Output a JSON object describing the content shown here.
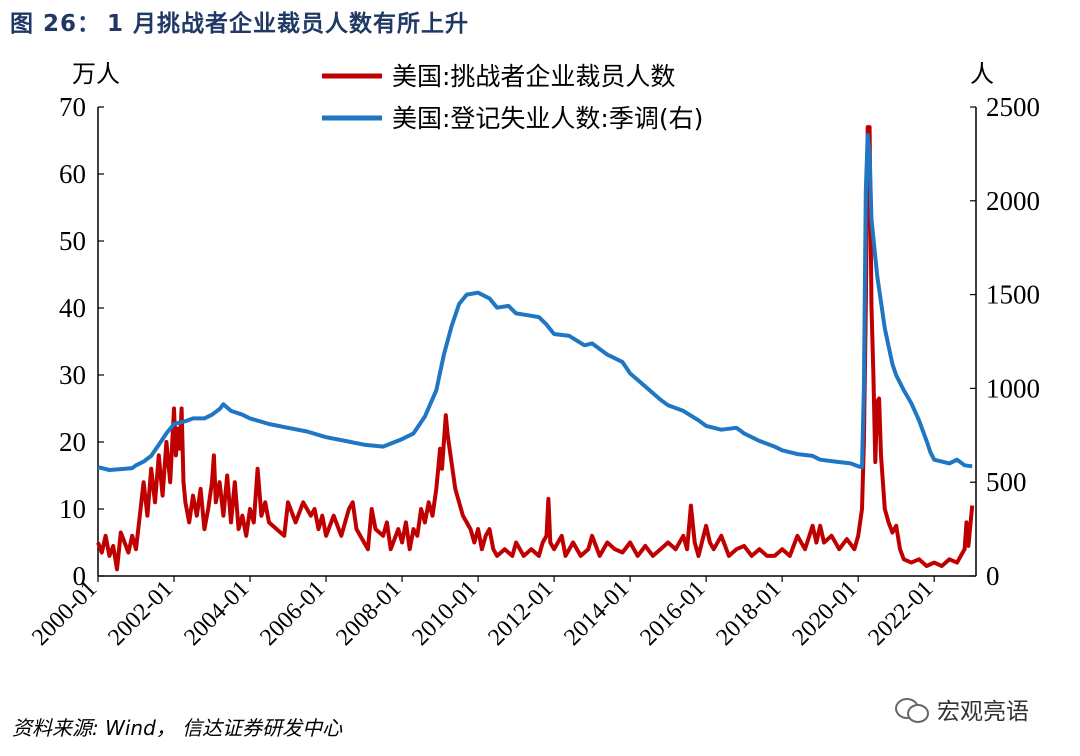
{
  "figure": {
    "label": "图 26：",
    "title": "1 月挑战者企业裁员人数有所上升",
    "source": "资料来源: Wind， 信达证券研发中心",
    "watermark": "宏观亮语",
    "watermark_icon": "wechat-icon"
  },
  "chart_data": {
    "type": "line",
    "x_tick_labels": [
      "2000-01",
      "2002-01",
      "2004-01",
      "2006-01",
      "2008-01",
      "2010-01",
      "2012-01",
      "2014-01",
      "2016-01",
      "2018-01",
      "2020-01",
      "2022-01"
    ],
    "x_ticks": [
      2000,
      2002,
      2004,
      2006,
      2008,
      2010,
      2012,
      2014,
      2016,
      2018,
      2020,
      2022
    ],
    "xlim": [
      2000.0,
      2023.1
    ],
    "left_axis": {
      "unit": "万人",
      "ylim": [
        0,
        70
      ],
      "ticks": [
        0,
        10,
        20,
        30,
        40,
        50,
        60,
        70
      ]
    },
    "right_axis": {
      "unit": "人",
      "ylim": [
        0,
        2500
      ],
      "ticks": [
        0,
        500,
        1000,
        1500,
        2000,
        2500
      ]
    },
    "grid": false,
    "legend_position": "top-center",
    "series": [
      {
        "name": "美国:挑战者企业裁员人数",
        "axis": "left",
        "color": "#c00000",
        "points": [
          [
            2000.0,
            5.0
          ],
          [
            2000.1,
            3.5
          ],
          [
            2000.2,
            6.0
          ],
          [
            2000.3,
            3.0
          ],
          [
            2000.4,
            4.5
          ],
          [
            2000.5,
            1.0
          ],
          [
            2000.6,
            6.5
          ],
          [
            2000.7,
            5.0
          ],
          [
            2000.8,
            3.5
          ],
          [
            2000.9,
            6.0
          ],
          [
            2001.0,
            4.0
          ],
          [
            2001.1,
            9.0
          ],
          [
            2001.2,
            14.0
          ],
          [
            2001.3,
            9.0
          ],
          [
            2001.4,
            16.0
          ],
          [
            2001.5,
            11.0
          ],
          [
            2001.6,
            18.0
          ],
          [
            2001.7,
            12.0
          ],
          [
            2001.8,
            20.0
          ],
          [
            2001.9,
            14.0
          ],
          [
            2002.0,
            25.0
          ],
          [
            2002.05,
            18.0
          ],
          [
            2002.1,
            22.0
          ],
          [
            2002.15,
            19.0
          ],
          [
            2002.2,
            25.0
          ],
          [
            2002.25,
            14.0
          ],
          [
            2002.3,
            11.0
          ],
          [
            2002.4,
            8.0
          ],
          [
            2002.5,
            12.0
          ],
          [
            2002.6,
            9.0
          ],
          [
            2002.7,
            13.0
          ],
          [
            2002.8,
            7.0
          ],
          [
            2002.9,
            10.0
          ],
          [
            2003.0,
            14.0
          ],
          [
            2003.05,
            18.0
          ],
          [
            2003.1,
            11.0
          ],
          [
            2003.2,
            14.0
          ],
          [
            2003.3,
            9.0
          ],
          [
            2003.4,
            15.0
          ],
          [
            2003.5,
            8.0
          ],
          [
            2003.6,
            14.0
          ],
          [
            2003.7,
            7.0
          ],
          [
            2003.8,
            9.0
          ],
          [
            2003.9,
            6.0
          ],
          [
            2004.0,
            10.0
          ],
          [
            2004.1,
            8.0
          ],
          [
            2004.2,
            16.0
          ],
          [
            2004.3,
            9.0
          ],
          [
            2004.4,
            11.0
          ],
          [
            2004.5,
            8.0
          ],
          [
            2004.7,
            7.0
          ],
          [
            2004.9,
            6.0
          ],
          [
            2005.0,
            11.0
          ],
          [
            2005.2,
            8.0
          ],
          [
            2005.4,
            11.0
          ],
          [
            2005.6,
            9.0
          ],
          [
            2005.7,
            10.0
          ],
          [
            2005.8,
            7.0
          ],
          [
            2005.9,
            9.0
          ],
          [
            2006.0,
            6.0
          ],
          [
            2006.2,
            9.0
          ],
          [
            2006.4,
            6.0
          ],
          [
            2006.6,
            10.0
          ],
          [
            2006.7,
            11.0
          ],
          [
            2006.8,
            7.0
          ],
          [
            2007.0,
            5.0
          ],
          [
            2007.1,
            4.0
          ],
          [
            2007.2,
            10.0
          ],
          [
            2007.3,
            7.0
          ],
          [
            2007.5,
            6.0
          ],
          [
            2007.6,
            8.0
          ],
          [
            2007.7,
            4.0
          ],
          [
            2007.9,
            7.0
          ],
          [
            2008.0,
            5.0
          ],
          [
            2008.1,
            8.0
          ],
          [
            2008.2,
            4.0
          ],
          [
            2008.3,
            7.0
          ],
          [
            2008.4,
            6.0
          ],
          [
            2008.5,
            10.0
          ],
          [
            2008.6,
            8.0
          ],
          [
            2008.7,
            11.0
          ],
          [
            2008.8,
            9.0
          ],
          [
            2008.9,
            13.0
          ],
          [
            2009.0,
            19.0
          ],
          [
            2009.05,
            16.0
          ],
          [
            2009.1,
            20.0
          ],
          [
            2009.15,
            24.0
          ],
          [
            2009.2,
            21.0
          ],
          [
            2009.3,
            17.0
          ],
          [
            2009.4,
            13.0
          ],
          [
            2009.5,
            11.0
          ],
          [
            2009.6,
            9.0
          ],
          [
            2009.7,
            8.0
          ],
          [
            2009.8,
            7.0
          ],
          [
            2009.9,
            5.0
          ],
          [
            2010.0,
            7.0
          ],
          [
            2010.1,
            4.0
          ],
          [
            2010.2,
            6.0
          ],
          [
            2010.3,
            7.0
          ],
          [
            2010.4,
            4.0
          ],
          [
            2010.5,
            3.0
          ],
          [
            2010.7,
            4.0
          ],
          [
            2010.9,
            3.0
          ],
          [
            2011.0,
            5.0
          ],
          [
            2011.2,
            3.0
          ],
          [
            2011.4,
            4.0
          ],
          [
            2011.6,
            3.0
          ],
          [
            2011.7,
            5.0
          ],
          [
            2011.8,
            6.0
          ],
          [
            2011.85,
            11.5
          ],
          [
            2011.9,
            5.0
          ],
          [
            2012.0,
            4.0
          ],
          [
            2012.2,
            6.0
          ],
          [
            2012.3,
            3.0
          ],
          [
            2012.5,
            5.0
          ],
          [
            2012.7,
            3.0
          ],
          [
            2012.9,
            4.0
          ],
          [
            2013.0,
            6.0
          ],
          [
            2013.2,
            3.0
          ],
          [
            2013.4,
            5.0
          ],
          [
            2013.6,
            4.0
          ],
          [
            2013.8,
            3.5
          ],
          [
            2014.0,
            5.0
          ],
          [
            2014.2,
            3.0
          ],
          [
            2014.4,
            4.5
          ],
          [
            2014.6,
            3.0
          ],
          [
            2014.8,
            4.0
          ],
          [
            2015.0,
            5.0
          ],
          [
            2015.2,
            4.0
          ],
          [
            2015.4,
            6.0
          ],
          [
            2015.5,
            4.0
          ],
          [
            2015.6,
            10.5
          ],
          [
            2015.7,
            5.0
          ],
          [
            2015.8,
            3.0
          ],
          [
            2016.0,
            7.5
          ],
          [
            2016.1,
            5.0
          ],
          [
            2016.2,
            4.0
          ],
          [
            2016.4,
            6.0
          ],
          [
            2016.6,
            3.0
          ],
          [
            2016.8,
            4.0
          ],
          [
            2017.0,
            4.5
          ],
          [
            2017.2,
            3.0
          ],
          [
            2017.4,
            4.0
          ],
          [
            2017.6,
            3.0
          ],
          [
            2017.8,
            3.0
          ],
          [
            2018.0,
            4.0
          ],
          [
            2018.2,
            3.0
          ],
          [
            2018.4,
            6.0
          ],
          [
            2018.6,
            4.0
          ],
          [
            2018.8,
            7.5
          ],
          [
            2018.9,
            5.0
          ],
          [
            2019.0,
            7.5
          ],
          [
            2019.1,
            5.0
          ],
          [
            2019.3,
            6.0
          ],
          [
            2019.5,
            4.0
          ],
          [
            2019.7,
            5.5
          ],
          [
            2019.9,
            4.0
          ],
          [
            2020.0,
            6.0
          ],
          [
            2020.1,
            10.0
          ],
          [
            2020.15,
            20.0
          ],
          [
            2020.2,
            40.0
          ],
          [
            2020.25,
            67.0
          ],
          [
            2020.3,
            67.0
          ],
          [
            2020.35,
            40.0
          ],
          [
            2020.4,
            30.0
          ],
          [
            2020.45,
            17.0
          ],
          [
            2020.5,
            26.0
          ],
          [
            2020.55,
            26.5
          ],
          [
            2020.6,
            18.0
          ],
          [
            2020.7,
            10.0
          ],
          [
            2020.8,
            8.0
          ],
          [
            2020.9,
            6.5
          ],
          [
            2021.0,
            7.5
          ],
          [
            2021.1,
            4.0
          ],
          [
            2021.2,
            2.5
          ],
          [
            2021.4,
            2.0
          ],
          [
            2021.6,
            2.5
          ],
          [
            2021.8,
            1.5
          ],
          [
            2022.0,
            2.0
          ],
          [
            2022.2,
            1.5
          ],
          [
            2022.4,
            2.5
          ],
          [
            2022.6,
            2.0
          ],
          [
            2022.7,
            3.0
          ],
          [
            2022.8,
            4.0
          ],
          [
            2022.85,
            8.0
          ],
          [
            2022.9,
            4.5
          ],
          [
            2023.0,
            10.5
          ]
        ]
      },
      {
        "name": "美国:登记失业人数:季调(右)",
        "axis": "right",
        "color": "#1f77c4",
        "points": [
          [
            2000.0,
            580
          ],
          [
            2000.3,
            565
          ],
          [
            2000.6,
            570
          ],
          [
            2000.9,
            575
          ],
          [
            2001.0,
            590
          ],
          [
            2001.2,
            610
          ],
          [
            2001.4,
            640
          ],
          [
            2001.6,
            700
          ],
          [
            2001.8,
            760
          ],
          [
            2002.0,
            810
          ],
          [
            2002.3,
            825
          ],
          [
            2002.5,
            840
          ],
          [
            2002.8,
            840
          ],
          [
            2003.0,
            860
          ],
          [
            2003.2,
            890
          ],
          [
            2003.3,
            915
          ],
          [
            2003.5,
            880
          ],
          [
            2003.8,
            860
          ],
          [
            2004.0,
            840
          ],
          [
            2004.5,
            810
          ],
          [
            2005.0,
            790
          ],
          [
            2005.5,
            770
          ],
          [
            2006.0,
            740
          ],
          [
            2006.5,
            720
          ],
          [
            2007.0,
            700
          ],
          [
            2007.5,
            690
          ],
          [
            2008.0,
            730
          ],
          [
            2008.3,
            760
          ],
          [
            2008.6,
            850
          ],
          [
            2008.9,
            990
          ],
          [
            2009.1,
            1180
          ],
          [
            2009.3,
            1330
          ],
          [
            2009.5,
            1450
          ],
          [
            2009.7,
            1500
          ],
          [
            2010.0,
            1510
          ],
          [
            2010.3,
            1480
          ],
          [
            2010.5,
            1430
          ],
          [
            2010.8,
            1440
          ],
          [
            2011.0,
            1400
          ],
          [
            2011.3,
            1390
          ],
          [
            2011.6,
            1380
          ],
          [
            2011.8,
            1340
          ],
          [
            2012.0,
            1290
          ],
          [
            2012.4,
            1280
          ],
          [
            2012.8,
            1230
          ],
          [
            2013.0,
            1240
          ],
          [
            2013.4,
            1180
          ],
          [
            2013.8,
            1140
          ],
          [
            2014.0,
            1080
          ],
          [
            2014.4,
            1010
          ],
          [
            2014.8,
            940
          ],
          [
            2015.0,
            910
          ],
          [
            2015.4,
            880
          ],
          [
            2015.8,
            830
          ],
          [
            2016.0,
            800
          ],
          [
            2016.4,
            780
          ],
          [
            2016.8,
            790
          ],
          [
            2017.0,
            760
          ],
          [
            2017.4,
            720
          ],
          [
            2017.8,
            690
          ],
          [
            2018.0,
            670
          ],
          [
            2018.4,
            650
          ],
          [
            2018.8,
            640
          ],
          [
            2019.0,
            620
          ],
          [
            2019.4,
            610
          ],
          [
            2019.8,
            600
          ],
          [
            2020.0,
            585
          ],
          [
            2020.1,
            580
          ],
          [
            2020.15,
            1000
          ],
          [
            2020.2,
            2050
          ],
          [
            2020.25,
            2350
          ],
          [
            2020.3,
            2250
          ],
          [
            2020.35,
            1900
          ],
          [
            2020.5,
            1600
          ],
          [
            2020.7,
            1320
          ],
          [
            2020.9,
            1130
          ],
          [
            2021.0,
            1070
          ],
          [
            2021.2,
            990
          ],
          [
            2021.4,
            920
          ],
          [
            2021.6,
            830
          ],
          [
            2021.8,
            720
          ],
          [
            2021.9,
            660
          ],
          [
            2022.0,
            620
          ],
          [
            2022.2,
            610
          ],
          [
            2022.4,
            600
          ],
          [
            2022.6,
            620
          ],
          [
            2022.8,
            590
          ],
          [
            2023.0,
            585
          ]
        ]
      }
    ]
  }
}
